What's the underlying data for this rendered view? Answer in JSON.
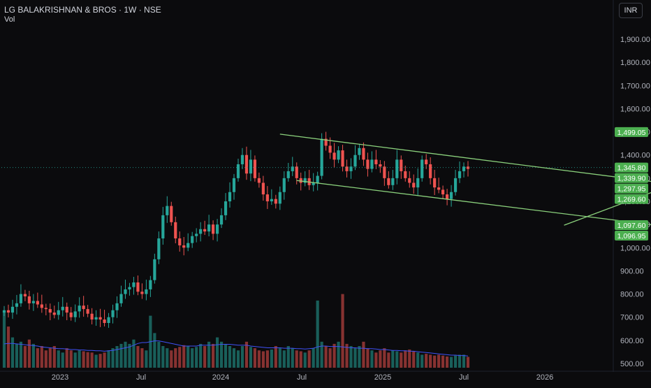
{
  "header": {
    "title": "LG BALAKRISHNAN & BROS · 1W · NSE",
    "volume_label": "Vol",
    "currency": "INR"
  },
  "colors": {
    "background": "#0b0b0d",
    "up": "#26a69a",
    "down": "#ef5350",
    "trendline": "#8bd17c",
    "volume_ma": "#3f51f5",
    "price_label_bg": "#4caf50"
  },
  "chart_data": {
    "type": "candlestick",
    "title": "LG BALAKRISHNAN & BROS · 1W · NSE",
    "ylim": [
      490,
      1960
    ],
    "y_ticks": [
      500,
      600,
      700,
      800,
      900,
      1000,
      1100,
      1200,
      1300,
      1400,
      1500,
      1600,
      1700,
      1800,
      1900
    ],
    "y_tick_labels": [
      "500.00",
      "600.00",
      "700.00",
      "800.00",
      "900.00",
      "1,000.00",
      "1,100.00",
      "1,200.00",
      "1,300.00",
      "1,400.00",
      "1,500.00",
      "1,600.00",
      "1,700.00",
      "1,800.00",
      "1,900.00"
    ],
    "x_ticks": [
      "2023",
      "Jul",
      "2024",
      "Jul",
      "2025",
      "Jul",
      "2026"
    ],
    "price_labels": [
      "1,499.05",
      "1,345.80",
      "1,339.90",
      "1,297.95",
      "1,269.60",
      "1,097.60",
      "1,096.95"
    ],
    "current_price": 1345.8,
    "grid": false,
    "candles_close": [
      730,
      720,
      745,
      760,
      800,
      790,
      760,
      770,
      755,
      740,
      735,
      720,
      710,
      730,
      745,
      720,
      700,
      725,
      750,
      735,
      715,
      690,
      700,
      690,
      675,
      700,
      730,
      760,
      800,
      820,
      830,
      850,
      810,
      800,
      820,
      860,
      950,
      1040,
      1140,
      1180,
      1110,
      1040,
      1010,
      1000,
      1020,
      1050,
      1060,
      1080,
      1070,
      1100,
      1060,
      1100,
      1140,
      1200,
      1240,
      1300,
      1360,
      1400,
      1320,
      1380,
      1300,
      1280,
      1230,
      1200,
      1210,
      1190,
      1240,
      1300,
      1330,
      1350,
      1300,
      1280,
      1300,
      1270,
      1280,
      1310,
      1470,
      1440,
      1410,
      1380,
      1420,
      1350,
      1330,
      1350,
      1400,
      1430,
      1380,
      1340,
      1380,
      1360,
      1350,
      1300,
      1270,
      1300,
      1380,
      1330,
      1300,
      1280,
      1260,
      1300,
      1380,
      1360,
      1300,
      1260,
      1250,
      1230,
      1210,
      1240,
      1300,
      1330,
      1350,
      1340
    ],
    "volume": [
      130,
      95,
      70,
      55,
      60,
      50,
      65,
      55,
      45,
      50,
      40,
      45,
      50,
      40,
      35,
      45,
      40,
      35,
      40,
      38,
      36,
      35,
      30,
      32,
      35,
      40,
      45,
      50,
      55,
      60,
      55,
      65,
      50,
      45,
      40,
      120,
      80,
      60,
      50,
      45,
      40,
      45,
      48,
      52,
      50,
      45,
      48,
      55,
      50,
      60,
      55,
      70,
      60,
      55,
      50,
      45,
      40,
      50,
      60,
      48,
      45,
      40,
      38,
      40,
      42,
      50,
      45,
      40,
      50,
      45,
      40,
      38,
      35,
      40,
      45,
      155,
      60,
      50,
      45,
      55,
      60,
      170,
      55,
      50,
      45,
      50,
      60,
      45,
      40,
      35,
      40,
      45,
      35,
      40,
      38,
      35,
      40,
      42,
      38,
      35,
      30,
      32,
      30,
      28,
      30,
      28,
      26,
      25,
      28,
      30,
      30,
      25
    ],
    "volume_ma": [
      55,
      56,
      56,
      55,
      54,
      53,
      52,
      51,
      50,
      48,
      47,
      46,
      45,
      44,
      44,
      43,
      42,
      42,
      41,
      41,
      40,
      40,
      39,
      39,
      38,
      39,
      40,
      42,
      44,
      46,
      48,
      52,
      56,
      58,
      58,
      60,
      62,
      62,
      60,
      58,
      56,
      54,
      52,
      50,
      50,
      50,
      50,
      52,
      52,
      52,
      52,
      53,
      54,
      54,
      54,
      53,
      52,
      52,
      52,
      50,
      49,
      48,
      47,
      46,
      46,
      46,
      46,
      45,
      45,
      45,
      44,
      44,
      43,
      44,
      45,
      48,
      50,
      50,
      49,
      49,
      49,
      48,
      47,
      46,
      46,
      45,
      45,
      44,
      44,
      43,
      42,
      42,
      41,
      40,
      40,
      39,
      39,
      38,
      38,
      37,
      36,
      35,
      34,
      33,
      32,
      31,
      30,
      29,
      29,
      28,
      28,
      27
    ],
    "trendlines": [
      {
        "from": [
          66,
          1490
        ],
        "to": [
          160,
          1274
        ]
      },
      {
        "from": [
          70,
          1290
        ],
        "to": [
          156,
          1097
        ]
      },
      {
        "from": [
          134,
          1097
        ],
        "to": [
          170,
          1340
        ]
      }
    ]
  }
}
